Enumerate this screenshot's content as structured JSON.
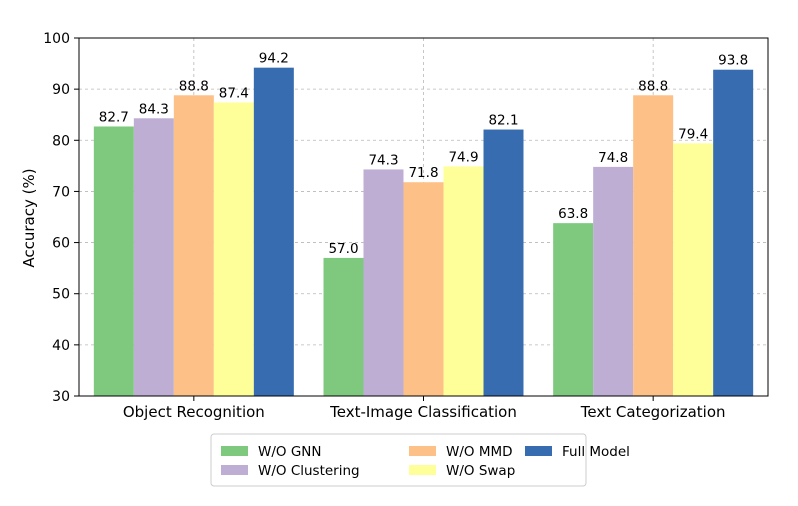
{
  "chart_data": {
    "type": "bar",
    "ylabel": "Accuracy (%)",
    "ylim": [
      30,
      100
    ],
    "yticks": [
      30,
      40,
      50,
      60,
      70,
      80,
      90,
      100
    ],
    "grid": true,
    "legend_position": "bottom-center",
    "categories": [
      "Object Recognition",
      "Text-Image Classification",
      "Text Categorization"
    ],
    "series": [
      {
        "name": "W/O GNN",
        "color": "#7fc97f",
        "values": [
          82.7,
          57.0,
          63.8
        ],
        "labels": [
          "82.7",
          "57.0",
          "63.8"
        ]
      },
      {
        "name": "W/O Clustering",
        "color": "#beaed4",
        "values": [
          84.3,
          74.3,
          74.8
        ],
        "labels": [
          "84.3",
          "74.3",
          "74.8"
        ]
      },
      {
        "name": "W/O MMD",
        "color": "#fdc086",
        "values": [
          88.8,
          71.8,
          88.8
        ],
        "labels": [
          "88.8",
          "71.8",
          "88.8"
        ]
      },
      {
        "name": "W/O Swap",
        "color": "#ffff99",
        "values": [
          87.4,
          74.9,
          79.4
        ],
        "labels": [
          "87.4",
          "74.9",
          "79.4"
        ]
      },
      {
        "name": "Full Model",
        "color": "#386cb0",
        "values": [
          94.2,
          82.1,
          93.8
        ],
        "labels": [
          "94.2",
          "82.1",
          "93.8"
        ]
      }
    ]
  }
}
